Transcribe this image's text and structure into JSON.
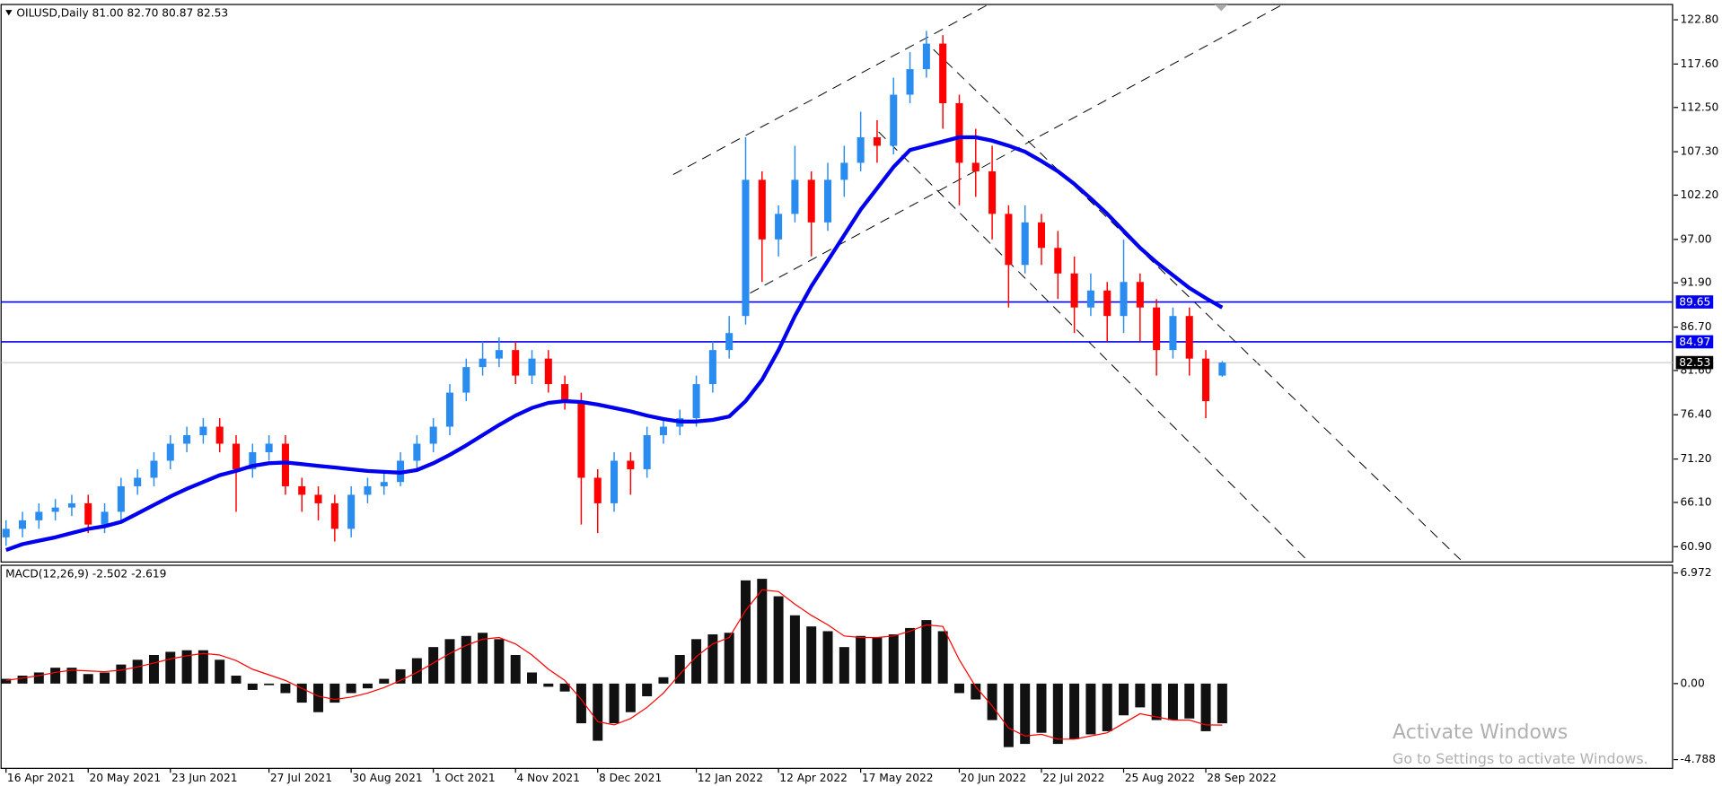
{
  "chart_data": [
    {
      "type": "candlestick",
      "title": "OILUSD,Daily  81.00 82.70 80.87 82.53",
      "up_color": "#2b8cf0",
      "down_color": "#ff0000",
      "ohlc": [
        [
          62,
          64,
          61,
          63
        ],
        [
          63,
          65,
          62,
          64
        ],
        [
          64,
          66,
          63,
          65
        ],
        [
          65,
          66.5,
          64,
          65.5
        ],
        [
          65.5,
          67,
          64.5,
          66
        ],
        [
          66,
          67,
          62.5,
          63.5
        ],
        [
          63.5,
          66,
          62.5,
          65
        ],
        [
          65,
          69,
          64,
          68
        ],
        [
          68,
          70,
          67,
          69
        ],
        [
          69,
          72,
          68,
          71
        ],
        [
          71,
          74,
          70,
          73
        ],
        [
          73,
          75,
          72,
          74
        ],
        [
          74,
          76,
          73,
          75
        ],
        [
          75,
          76,
          72,
          73
        ],
        [
          73,
          74,
          65,
          70
        ],
        [
          70,
          73,
          69,
          72
        ],
        [
          72,
          74,
          71,
          73
        ],
        [
          73,
          74,
          67,
          68
        ],
        [
          68,
          69,
          65,
          67
        ],
        [
          67,
          68,
          64,
          66
        ],
        [
          66,
          67,
          61.5,
          63
        ],
        [
          63,
          68,
          62,
          67
        ],
        [
          67,
          69,
          66,
          68
        ],
        [
          68,
          69.5,
          67,
          68.5
        ],
        [
          68.5,
          72,
          68,
          71
        ],
        [
          71,
          74,
          70,
          73
        ],
        [
          73,
          76,
          72,
          75
        ],
        [
          75,
          80,
          74,
          79
        ],
        [
          79,
          83,
          78,
          82
        ],
        [
          82,
          85,
          81,
          83
        ],
        [
          83,
          85.5,
          82,
          84
        ],
        [
          84,
          85,
          80,
          81
        ],
        [
          81,
          84,
          80,
          83
        ],
        [
          83,
          84,
          79,
          80
        ],
        [
          80,
          81,
          77,
          78
        ],
        [
          78,
          79,
          63.5,
          69
        ],
        [
          69,
          70,
          62.5,
          66
        ],
        [
          66,
          72,
          65,
          71
        ],
        [
          71,
          72,
          67,
          70
        ],
        [
          70,
          75,
          69,
          74
        ],
        [
          74,
          76,
          73,
          75
        ],
        [
          75,
          77,
          74,
          76
        ],
        [
          76,
          81,
          75,
          80
        ],
        [
          80,
          85,
          79,
          84
        ],
        [
          84,
          88,
          83,
          86
        ],
        [
          88,
          109,
          87,
          104
        ],
        [
          104,
          105,
          92,
          97
        ],
        [
          97,
          101,
          95,
          100
        ],
        [
          100,
          108,
          99,
          104
        ],
        [
          104,
          105,
          95,
          99
        ],
        [
          99,
          106,
          98,
          104
        ],
        [
          104,
          108,
          102,
          106
        ],
        [
          106,
          112,
          105,
          109
        ],
        [
          109,
          111,
          106,
          108
        ],
        [
          108,
          116,
          107,
          114
        ],
        [
          114,
          119,
          113,
          117
        ],
        [
          117,
          121.5,
          116,
          120
        ],
        [
          120,
          121,
          110,
          113
        ],
        [
          113,
          114,
          101,
          106
        ],
        [
          106,
          110,
          102,
          105
        ],
        [
          105,
          108,
          97,
          100
        ],
        [
          100,
          101,
          89,
          94
        ],
        [
          94,
          101,
          93,
          99
        ],
        [
          99,
          100,
          94,
          96
        ],
        [
          96,
          98,
          90,
          93
        ],
        [
          93,
          95,
          86,
          89
        ],
        [
          89,
          93,
          88,
          91
        ],
        [
          91,
          92,
          85,
          88
        ],
        [
          88,
          97,
          86,
          92
        ],
        [
          92,
          93,
          85,
          89
        ],
        [
          89,
          90,
          81,
          84
        ],
        [
          84,
          89,
          83,
          88
        ],
        [
          88,
          89,
          81,
          83
        ],
        [
          83,
          84,
          76,
          78
        ],
        [
          81,
          82.7,
          80.87,
          82.53
        ]
      ],
      "ma": {
        "color": "#0000ee",
        "values": [
          60.5,
          61.2,
          61.6,
          62,
          62.5,
          63,
          63.3,
          63.8,
          64.8,
          65.8,
          66.8,
          67.7,
          68.5,
          69.3,
          69.8,
          70.4,
          70.7,
          70.8,
          70.6,
          70.4,
          70.2,
          70,
          69.8,
          69.7,
          69.6,
          69.9,
          70.7,
          71.7,
          72.8,
          74,
          75.2,
          76.3,
          77.2,
          77.8,
          78,
          77.9,
          77.6,
          77.2,
          76.8,
          76.3,
          75.9,
          75.6,
          75.6,
          75.8,
          76.2,
          78,
          80.5,
          84,
          88,
          91.5,
          94.5,
          97.5,
          100.5,
          103,
          105.5,
          107.5,
          108,
          108.5,
          109,
          109,
          108.6,
          108,
          107.3,
          106.2,
          105,
          103.5,
          101.8,
          100,
          98,
          96,
          94.3,
          92.8,
          91.3,
          90.1,
          89
        ]
      },
      "levels": [
        {
          "value": 89.65,
          "color": "#0000ee"
        },
        {
          "value": 84.97,
          "color": "#0000ee"
        },
        {
          "value": 82.53,
          "color": "#000000"
        }
      ],
      "xlim": [
        -0.3,
        101.4
      ],
      "xticks": [
        {
          "value": 0,
          "label": "16 Apr 2021"
        },
        {
          "value": 5,
          "label": "20 May 2021"
        },
        {
          "value": 10,
          "label": "23 Jun 2021"
        },
        {
          "value": 16,
          "label": "27 Jul 2021"
        },
        {
          "value": 21,
          "label": "30 Aug 2021"
        },
        {
          "value": 26,
          "label": "1 Oct 2021"
        },
        {
          "value": 31,
          "label": "4 Nov 2021"
        },
        {
          "value": 36,
          "label": "8 Dec 2021"
        },
        {
          "value": 42,
          "label": "12 Jan 2022"
        },
        {
          "value": 47,
          "label": "12 Apr 2022"
        },
        {
          "value": 52,
          "label": "17 May 2022"
        },
        {
          "value": 58,
          "label": "20 Jun 2022"
        },
        {
          "value": 63,
          "label": "22 Jul 2022"
        },
        {
          "value": 68,
          "label": "25 Aug 2022"
        },
        {
          "value": 73,
          "label": "28 Sep 2022"
        }
      ],
      "ylim": [
        59.1,
        124.6
      ],
      "yticks": [
        {
          "value": 122.8,
          "label": "122.80"
        },
        {
          "value": 117.6,
          "label": "117.60"
        },
        {
          "value": 112.5,
          "label": "112.50"
        },
        {
          "value": 107.3,
          "label": "107.30"
        },
        {
          "value": 102.2,
          "label": "102.20"
        },
        {
          "value": 97,
          "label": "97.00"
        },
        {
          "value": 91.9,
          "label": "91.90"
        },
        {
          "value": 86.7,
          "label": "86.70"
        },
        {
          "value": 81.6,
          "label": "81.60"
        },
        {
          "value": 76.4,
          "label": "76.40"
        },
        {
          "value": 71.2,
          "label": "71.20"
        },
        {
          "value": 66.1,
          "label": "66.10"
        },
        {
          "value": 60.9,
          "label": "60.90"
        }
      ]
    },
    {
      "type": "macd",
      "title": "MACD(12,26,9) -2.502 -2.619",
      "histogram": {
        "color": "#111111",
        "values": [
          0.3,
          0.5,
          0.7,
          1,
          1,
          0.6,
          0.7,
          1.2,
          1.5,
          1.8,
          2,
          2.1,
          2.1,
          1.5,
          0.5,
          -0.4,
          -0.1,
          -0.6,
          -1.2,
          -1.8,
          -1.2,
          -0.6,
          -0.3,
          0.3,
          0.9,
          1.6,
          2.3,
          2.8,
          3,
          3.2,
          2.8,
          1.8,
          0.7,
          -0.2,
          -0.5,
          -2.5,
          -3.6,
          -2.5,
          -1.8,
          -0.8,
          0.4,
          1.8,
          2.8,
          3.1,
          3.2,
          6.5,
          6.6,
          5.5,
          4.3,
          3.6,
          3.3,
          2.3,
          3,
          2.9,
          3.1,
          3.5,
          4,
          3.3,
          -0.6,
          -1,
          -2.3,
          -4,
          -3.8,
          -3.1,
          -3.8,
          -3.5,
          -3.2,
          -3,
          -2,
          -1.5,
          -2.3,
          -2.3,
          -2.2,
          -3,
          -2.502
        ]
      },
      "signal": {
        "color": "#ff0000",
        "values": [
          0.2,
          0.35,
          0.5,
          0.7,
          0.85,
          0.8,
          0.75,
          0.85,
          1.05,
          1.3,
          1.55,
          1.75,
          1.9,
          1.8,
          1.45,
          0.9,
          0.55,
          0.2,
          -0.3,
          -0.8,
          -1,
          -0.85,
          -0.6,
          -0.25,
          0.2,
          0.7,
          1.3,
          1.9,
          2.4,
          2.8,
          2.9,
          2.5,
          1.8,
          0.9,
          0.2,
          -1,
          -2.4,
          -2.6,
          -2.2,
          -1.5,
          -0.6,
          0.6,
          1.7,
          2.5,
          2.9,
          4.6,
          5.9,
          5.8,
          5,
          4.3,
          3.7,
          3,
          2.9,
          2.9,
          3,
          3.3,
          3.7,
          3.6,
          1.5,
          -0.2,
          -1.4,
          -2.8,
          -3.3,
          -3.2,
          -3.5,
          -3.5,
          -3.3,
          -3.1,
          -2.5,
          -1.9,
          -2.1,
          -2.3,
          -2.3,
          -2.6,
          -2.619
        ]
      },
      "xlim": [
        -0.3,
        101.4
      ],
      "ylim": [
        -5.34,
        7.45
      ],
      "yticks": [
        6.972,
        {
          "value": 0,
          "label": "0.00"
        },
        -4.788
      ]
    }
  ],
  "watermark": {
    "title": "Activate Windows",
    "subtitle": "Go to Settings to activate Windows."
  }
}
